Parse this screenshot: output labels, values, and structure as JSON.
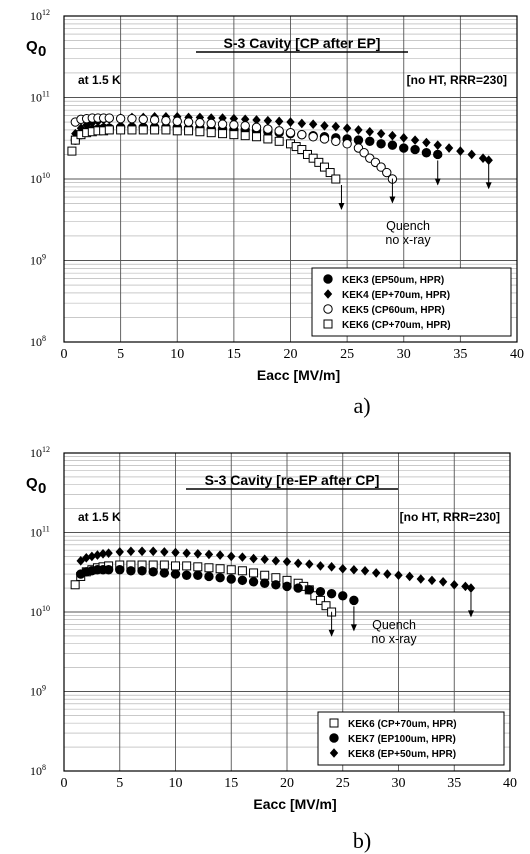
{
  "chart_data": [
    {
      "type": "scatter",
      "title": "S-3 Cavity [CP after EP]",
      "ylabel": "Q",
      "ylabel_sub": "0",
      "xlabel": "Eacc  [MV/m]",
      "xlim": [
        0,
        40
      ],
      "ylim": [
        100000000.0,
        1000000000000.0
      ],
      "yscale": "log",
      "xticks": [
        "0",
        "5",
        "10",
        "15",
        "20",
        "25",
        "30",
        "35",
        "40"
      ],
      "annotations": {
        "temp": "at 1.5 K",
        "note": "[no HT, RRR=230]",
        "quench1": "Quench",
        "quench2": "no x-ray"
      },
      "caption": "a)",
      "legend_position": "bottom-right",
      "series": [
        {
          "name": "KEK3 (EP50um, HPR)",
          "marker": "circle-filled",
          "x": [
            1.0,
            1.5,
            2,
            2.5,
            3,
            3.5,
            4,
            5,
            6,
            7,
            8,
            9,
            10,
            11,
            12,
            13,
            14,
            15,
            16,
            17,
            18,
            19,
            20,
            21,
            22,
            23,
            24,
            25,
            26,
            27,
            28,
            29,
            30,
            31,
            32,
            33
          ],
          "y": [
            30000000000.0,
            35000000000.0,
            38000000000.0,
            40000000000.0,
            41000000000.0,
            42000000000.0,
            42000000000.0,
            43000000000.0,
            43000000000.0,
            43000000000.0,
            43000000000.0,
            43000000000.0,
            43000000000.0,
            42000000000.0,
            42000000000.0,
            41000000000.0,
            41000000000.0,
            40000000000.0,
            40000000000.0,
            39000000000.0,
            38000000000.0,
            37000000000.0,
            36000000000.0,
            35000000000.0,
            34000000000.0,
            33000000000.0,
            32000000000.0,
            31000000000.0,
            30000000000.0,
            29000000000.0,
            27000000000.0,
            26000000000.0,
            24000000000.0,
            23000000000.0,
            21000000000.0,
            20000000000.0
          ]
        },
        {
          "name": "KEK4 (EP+70um, HPR)",
          "marker": "diamond-filled",
          "x": [
            1.0,
            1.5,
            2,
            2.5,
            3,
            3.5,
            4,
            5,
            6,
            7,
            8,
            9,
            10,
            11,
            12,
            13,
            14,
            15,
            16,
            17,
            18,
            19,
            20,
            21,
            22,
            23,
            24,
            25,
            26,
            27,
            28,
            29,
            30,
            31,
            32,
            33,
            34,
            35,
            36,
            37,
            37.5
          ],
          "y": [
            36000000000.0,
            42000000000.0,
            46000000000.0,
            49000000000.0,
            51000000000.0,
            53000000000.0,
            54000000000.0,
            56000000000.0,
            57000000000.0,
            57000000000.0,
            58000000000.0,
            58000000000.0,
            58000000000.0,
            57000000000.0,
            57000000000.0,
            56000000000.0,
            56000000000.0,
            55000000000.0,
            54000000000.0,
            53000000000.0,
            52000000000.0,
            51000000000.0,
            50000000000.0,
            48000000000.0,
            47000000000.0,
            45000000000.0,
            44000000000.0,
            42000000000.0,
            40000000000.0,
            38000000000.0,
            36000000000.0,
            34000000000.0,
            32000000000.0,
            30000000000.0,
            28000000000.0,
            26000000000.0,
            24000000000.0,
            22000000000.0,
            20000000000.0,
            18000000000.0,
            17000000000.0
          ]
        },
        {
          "name": "KEK5 (CP60um, HPR)",
          "marker": "circle-open",
          "x": [
            1.0,
            1.5,
            2,
            2.5,
            3,
            3.5,
            4,
            5,
            6,
            7,
            8,
            9,
            10,
            11,
            12,
            13,
            14,
            15,
            16,
            17,
            18,
            19,
            20,
            21,
            22,
            23,
            24,
            25,
            26,
            26.5,
            27,
            27.5,
            28,
            28.5,
            29
          ],
          "y": [
            50000000000.0,
            54000000000.0,
            55000000000.0,
            56000000000.0,
            56000000000.0,
            56000000000.0,
            56000000000.0,
            55000000000.0,
            55000000000.0,
            54000000000.0,
            53000000000.0,
            52000000000.0,
            51000000000.0,
            50000000000.0,
            49000000000.0,
            48000000000.0,
            47000000000.0,
            46000000000.0,
            45000000000.0,
            43000000000.0,
            41000000000.0,
            39000000000.0,
            37000000000.0,
            35000000000.0,
            33000000000.0,
            31000000000.0,
            29000000000.0,
            27000000000.0,
            24000000000.0,
            21000000000.0,
            18000000000.0,
            16000000000.0,
            14000000000.0,
            12000000000.0,
            10000000000.0
          ]
        },
        {
          "name": "KEK6 (CP+70um, HPR)",
          "marker": "square-open",
          "x": [
            0.7,
            1.0,
            1.5,
            2,
            2.5,
            3,
            3.5,
            4,
            5,
            6,
            7,
            8,
            9,
            10,
            11,
            12,
            13,
            14,
            15,
            16,
            17,
            18,
            19,
            20,
            20.5,
            21,
            21.5,
            22,
            22.5,
            23,
            23.5,
            24
          ],
          "y": [
            22000000000.0,
            30000000000.0,
            35000000000.0,
            37000000000.0,
            38000000000.0,
            39000000000.0,
            39000000000.0,
            40000000000.0,
            40000000000.0,
            40000000000.0,
            40000000000.0,
            40000000000.0,
            40000000000.0,
            39000000000.0,
            39000000000.0,
            38000000000.0,
            37000000000.0,
            36000000000.0,
            35000000000.0,
            34000000000.0,
            33000000000.0,
            31000000000.0,
            29000000000.0,
            27000000000.0,
            25000000000.0,
            23000000000.0,
            20000000000.0,
            18000000000.0,
            16000000000.0,
            14000000000.0,
            12000000000.0,
            10000000000.0
          ]
        }
      ],
      "quench_x": [
        24.5,
        29,
        33,
        37.5
      ]
    },
    {
      "type": "scatter",
      "title": "S-3 Cavity [re-EP after CP]",
      "ylabel": "Q",
      "ylabel_sub": "0",
      "xlabel": "Eacc  [MV/m]",
      "xlim": [
        0,
        40
      ],
      "ylim": [
        100000000.0,
        1000000000000.0
      ],
      "yscale": "log",
      "xticks": [
        "0",
        "5",
        "10",
        "15",
        "20",
        "25",
        "30",
        "35",
        "40"
      ],
      "annotations": {
        "temp": "at 1.5 K",
        "note": "[no HT, RRR=230]",
        "quench1": "Quench",
        "quench2": "no x-ray"
      },
      "caption": "b)",
      "legend_position": "bottom-right",
      "series": [
        {
          "name": "KEK6 (CP+70um, HPR)",
          "marker": "square-open",
          "x": [
            1.0,
            1.5,
            2,
            2.5,
            3,
            3.5,
            4,
            5,
            6,
            7,
            8,
            9,
            10,
            11,
            12,
            13,
            14,
            15,
            16,
            17,
            18,
            19,
            20,
            21,
            21.5,
            22,
            22.5,
            23,
            23.5,
            24
          ],
          "y": [
            22000000000.0,
            28000000000.0,
            32000000000.0,
            34000000000.0,
            36000000000.0,
            37000000000.0,
            38000000000.0,
            39000000000.0,
            39000000000.0,
            39000000000.0,
            39000000000.0,
            39000000000.0,
            38000000000.0,
            38000000000.0,
            37000000000.0,
            36000000000.0,
            35000000000.0,
            34000000000.0,
            33000000000.0,
            31000000000.0,
            29000000000.0,
            27000000000.0,
            25000000000.0,
            23000000000.0,
            21000000000.0,
            19000000000.0,
            16000000000.0,
            14000000000.0,
            12000000000.0,
            10000000000.0
          ]
        },
        {
          "name": "KEK7 (EP100um, HPR)",
          "marker": "circle-filled",
          "x": [
            1.5,
            2,
            2.5,
            3,
            3.5,
            4,
            5,
            6,
            7,
            8,
            9,
            10,
            11,
            12,
            13,
            14,
            15,
            16,
            17,
            18,
            19,
            20,
            21,
            22,
            23,
            24,
            25,
            26
          ],
          "y": [
            30000000000.0,
            32000000000.0,
            33000000000.0,
            34000000000.0,
            34000000000.0,
            34000000000.0,
            34000000000.0,
            33000000000.0,
            33000000000.0,
            32000000000.0,
            31000000000.0,
            30000000000.0,
            29000000000.0,
            29000000000.0,
            28000000000.0,
            27000000000.0,
            26000000000.0,
            25000000000.0,
            24000000000.0,
            23000000000.0,
            22000000000.0,
            21000000000.0,
            20000000000.0,
            19000000000.0,
            18000000000.0,
            17000000000.0,
            16000000000.0,
            14000000000.0
          ]
        },
        {
          "name": "KEK8 (EP+50um, HPR)",
          "marker": "diamond-filled",
          "x": [
            1.5,
            2,
            2.5,
            3,
            3.5,
            4,
            5,
            6,
            7,
            8,
            9,
            10,
            11,
            12,
            13,
            14,
            15,
            16,
            17,
            18,
            19,
            20,
            21,
            22,
            23,
            24,
            25,
            26,
            27,
            28,
            29,
            30,
            31,
            32,
            33,
            34,
            35,
            36,
            36.5
          ],
          "y": [
            44000000000.0,
            48000000000.0,
            50000000000.0,
            52000000000.0,
            54000000000.0,
            55000000000.0,
            57000000000.0,
            58000000000.0,
            58000000000.0,
            58000000000.0,
            57000000000.0,
            56000000000.0,
            55000000000.0,
            54000000000.0,
            53000000000.0,
            52000000000.0,
            50000000000.0,
            49000000000.0,
            47000000000.0,
            46000000000.0,
            44000000000.0,
            43000000000.0,
            41000000000.0,
            40000000000.0,
            38000000000.0,
            37000000000.0,
            35000000000.0,
            34000000000.0,
            33000000000.0,
            31000000000.0,
            30000000000.0,
            29000000000.0,
            28000000000.0,
            26000000000.0,
            25000000000.0,
            24000000000.0,
            22000000000.0,
            21000000000.0,
            20000000000.0
          ]
        }
      ],
      "quench_x": [
        24,
        26,
        36.5
      ]
    }
  ]
}
